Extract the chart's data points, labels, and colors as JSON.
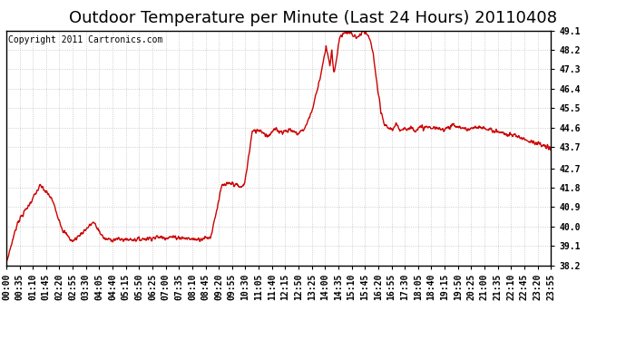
{
  "title": "Outdoor Temperature per Minute (Last 24 Hours) 20110408",
  "copyright": "Copyright 2011 Cartronics.com",
  "line_color": "#cc0000",
  "background_color": "#ffffff",
  "plot_bg_color": "#ffffff",
  "grid_color": "#aaaaaa",
  "ylim": [
    38.2,
    49.1
  ],
  "yticks": [
    38.2,
    39.1,
    40.0,
    40.9,
    41.8,
    42.7,
    43.7,
    44.6,
    45.5,
    46.4,
    47.3,
    48.2,
    49.1
  ],
  "xtick_labels": [
    "00:00",
    "00:35",
    "01:10",
    "01:45",
    "02:20",
    "02:55",
    "03:30",
    "04:05",
    "04:40",
    "05:15",
    "05:50",
    "06:25",
    "07:00",
    "07:35",
    "08:10",
    "08:45",
    "09:20",
    "09:55",
    "10:30",
    "11:05",
    "11:40",
    "12:15",
    "12:50",
    "13:25",
    "14:00",
    "14:35",
    "15:10",
    "15:45",
    "16:20",
    "16:55",
    "17:30",
    "18:05",
    "18:40",
    "19:15",
    "19:50",
    "20:25",
    "21:00",
    "21:35",
    "22:10",
    "22:45",
    "23:20",
    "23:55"
  ],
  "title_fontsize": 13,
  "tick_fontsize": 7,
  "copyright_fontsize": 7,
  "linewidth": 1.0,
  "keypoints": [
    [
      0,
      38.3
    ],
    [
      30,
      40.2
    ],
    [
      60,
      41.0
    ],
    [
      90,
      41.9
    ],
    [
      120,
      41.3
    ],
    [
      150,
      39.8
    ],
    [
      175,
      39.3
    ],
    [
      200,
      39.7
    ],
    [
      230,
      40.2
    ],
    [
      260,
      39.4
    ],
    [
      300,
      39.4
    ],
    [
      350,
      39.4
    ],
    [
      400,
      39.5
    ],
    [
      450,
      39.5
    ],
    [
      500,
      39.4
    ],
    [
      540,
      39.5
    ],
    [
      570,
      41.9
    ],
    [
      600,
      42.0
    ],
    [
      620,
      41.8
    ],
    [
      630,
      42.0
    ],
    [
      650,
      44.4
    ],
    [
      670,
      44.5
    ],
    [
      690,
      44.2
    ],
    [
      710,
      44.5
    ],
    [
      730,
      44.4
    ],
    [
      750,
      44.5
    ],
    [
      770,
      44.3
    ],
    [
      790,
      44.6
    ],
    [
      810,
      45.5
    ],
    [
      830,
      47.0
    ],
    [
      845,
      48.3
    ],
    [
      855,
      47.5
    ],
    [
      860,
      48.1
    ],
    [
      865,
      47.2
    ],
    [
      870,
      47.5
    ],
    [
      880,
      48.7
    ],
    [
      890,
      49.0
    ],
    [
      900,
      49.0
    ],
    [
      910,
      49.0
    ],
    [
      920,
      48.8
    ],
    [
      930,
      48.8
    ],
    [
      940,
      49.0
    ],
    [
      950,
      49.0
    ],
    [
      960,
      48.7
    ],
    [
      970,
      48.0
    ],
    [
      980,
      46.5
    ],
    [
      990,
      45.3
    ],
    [
      1000,
      44.7
    ],
    [
      1010,
      44.6
    ],
    [
      1020,
      44.5
    ],
    [
      1030,
      44.7
    ],
    [
      1040,
      44.5
    ],
    [
      1050,
      44.6
    ],
    [
      1060,
      44.5
    ],
    [
      1070,
      44.6
    ],
    [
      1080,
      44.5
    ],
    [
      1100,
      44.6
    ],
    [
      1120,
      44.6
    ],
    [
      1150,
      44.5
    ],
    [
      1180,
      44.7
    ],
    [
      1200,
      44.6
    ],
    [
      1220,
      44.5
    ],
    [
      1250,
      44.6
    ],
    [
      1280,
      44.5
    ],
    [
      1300,
      44.4
    ],
    [
      1320,
      44.3
    ],
    [
      1350,
      44.2
    ],
    [
      1380,
      44.0
    ],
    [
      1410,
      43.8
    ],
    [
      1439,
      43.6
    ]
  ]
}
